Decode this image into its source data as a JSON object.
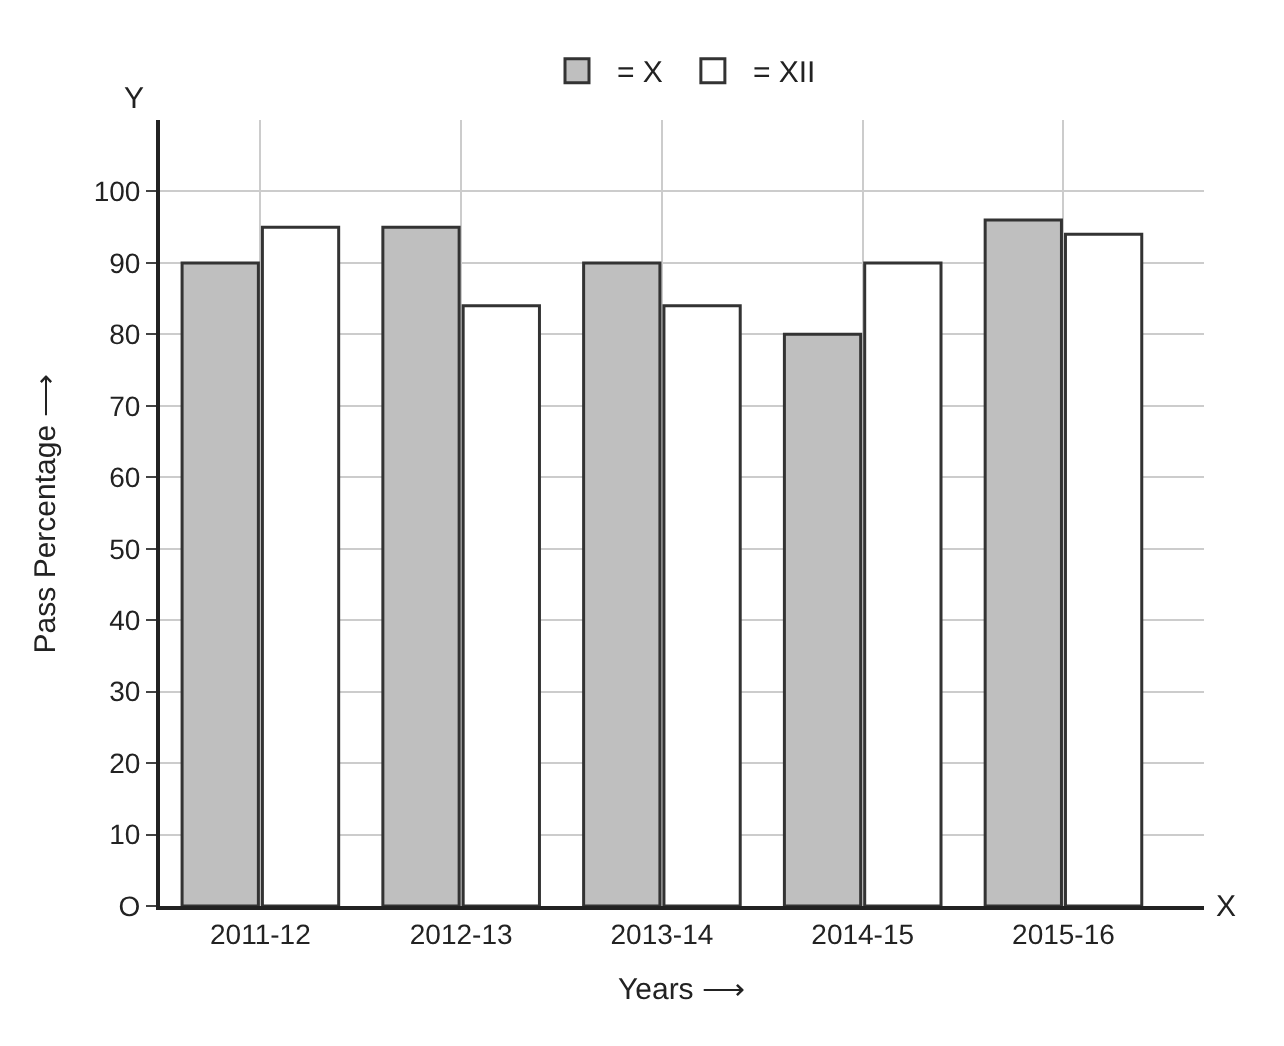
{
  "chart_data": {
    "type": "bar",
    "categories": [
      "2011-12",
      "2012-13",
      "2013-14",
      "2014-15",
      "2015-16"
    ],
    "series": [
      {
        "name": "= X",
        "color": "#bfbfbf",
        "values": [
          90,
          95,
          90,
          80,
          96
        ]
      },
      {
        "name": "= XII",
        "color": "#ffffff",
        "values": [
          95,
          84,
          84,
          90,
          94
        ]
      }
    ],
    "xlabel": "Years ⟶",
    "ylabel": "Pass Percentage ⟶",
    "ylim": [
      0,
      110
    ],
    "yticks": [
      {
        "value": 0,
        "label": "O"
      },
      10,
      20,
      30,
      40,
      50,
      60,
      70,
      80,
      90,
      100
    ],
    "annotations": [
      "Y",
      "X"
    ],
    "grid": true,
    "legend": "top"
  }
}
